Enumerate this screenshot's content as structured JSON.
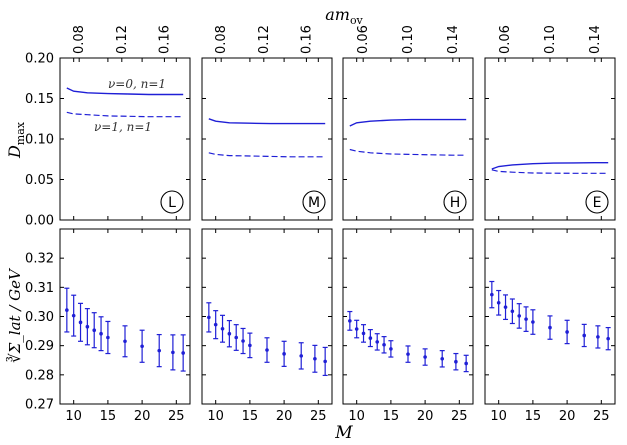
{
  "chart_data": {
    "type": "line",
    "x_label": "M",
    "top_x_label": "am_ov",
    "top_y_label": "D_max",
    "bottom_y_label": "∛Σ_lat / GeV",
    "x_range": [
      8,
      27
    ],
    "top_y_range": [
      0.0,
      0.2
    ],
    "bottom_y_range": [
      0.27,
      0.33
    ],
    "top_y_ticks": [
      "0.00",
      "0.05",
      "0.10",
      "0.15",
      "0.20"
    ],
    "bottom_y_ticks": [
      "0.27",
      "0.28",
      "0.29",
      "0.30",
      "0.31",
      "0.32"
    ],
    "x_ticks": [
      "10",
      "15",
      "20",
      "25"
    ],
    "annotations": {
      "nu0": "ν=0, n=1",
      "nu1": "ν=1, n=1"
    },
    "panels": [
      {
        "label": "L",
        "top_axis_ticks": [
          "0.08",
          "0.12",
          "0.16"
        ],
        "dmax_nu0": {
          "x": [
            9,
            10,
            12,
            15,
            18,
            21,
            24,
            26
          ],
          "y": [
            0.163,
            0.159,
            0.157,
            0.156,
            0.1555,
            0.155,
            0.155,
            0.155
          ]
        },
        "dmax_nu1": {
          "x": [
            9,
            10,
            12,
            15,
            18,
            21,
            24,
            26
          ],
          "y": [
            0.133,
            0.131,
            0.13,
            0.1285,
            0.128,
            0.1275,
            0.1275,
            0.1275
          ]
        },
        "sigma": {
          "M": [
            9,
            10,
            11,
            12,
            13,
            14,
            15,
            17.5,
            20,
            22.5,
            24.5,
            26
          ],
          "value": [
            0.3022,
            0.3003,
            0.298,
            0.2965,
            0.2953,
            0.2941,
            0.2928,
            0.2915,
            0.2898,
            0.2883,
            0.2877,
            0.2875
          ],
          "error": [
            0.0075,
            0.007,
            0.0065,
            0.0062,
            0.006,
            0.0058,
            0.0055,
            0.0053,
            0.0055,
            0.0055,
            0.006,
            0.0062
          ]
        }
      },
      {
        "label": "M",
        "top_axis_ticks": [
          "0.08",
          "0.12",
          "0.16"
        ],
        "dmax_nu0": {
          "x": [
            9,
            10,
            12,
            15,
            18,
            21,
            24,
            26
          ],
          "y": [
            0.125,
            0.122,
            0.12,
            0.1195,
            0.119,
            0.119,
            0.119,
            0.119
          ]
        },
        "dmax_nu1": {
          "x": [
            9,
            10,
            12,
            15,
            18,
            21,
            24,
            26
          ],
          "y": [
            0.083,
            0.081,
            0.0795,
            0.079,
            0.0785,
            0.078,
            0.078,
            0.078
          ]
        },
        "sigma": {
          "M": [
            9,
            10,
            11,
            12,
            13,
            14,
            15,
            17.5,
            20,
            22.5,
            24.5,
            26
          ],
          "value": [
            0.2997,
            0.2972,
            0.2958,
            0.2941,
            0.2928,
            0.2916,
            0.2901,
            0.2885,
            0.2872,
            0.2865,
            0.2855,
            0.2846
          ],
          "error": [
            0.005,
            0.0048,
            0.0046,
            0.0045,
            0.0044,
            0.0043,
            0.0042,
            0.0042,
            0.0043,
            0.0045,
            0.0046,
            0.0048
          ]
        }
      },
      {
        "label": "H",
        "top_axis_ticks": [
          "0.06",
          "0.10",
          "0.14"
        ],
        "dmax_nu0": {
          "x": [
            9,
            10,
            12,
            15,
            18,
            21,
            24,
            26
          ],
          "y": [
            0.116,
            0.12,
            0.122,
            0.1233,
            0.124,
            0.124,
            0.124,
            0.124
          ]
        },
        "dmax_nu1": {
          "x": [
            9,
            10,
            12,
            15,
            18,
            21,
            24,
            26
          ],
          "y": [
            0.087,
            0.085,
            0.083,
            0.0815,
            0.081,
            0.0805,
            0.08,
            0.08
          ]
        },
        "sigma": {
          "M": [
            9,
            10,
            11,
            12,
            13,
            14,
            15,
            17.5,
            20,
            22.5,
            24.5,
            26
          ],
          "value": [
            0.2985,
            0.2957,
            0.2942,
            0.2926,
            0.2913,
            0.2903,
            0.2889,
            0.2871,
            0.2861,
            0.2855,
            0.2845,
            0.2839
          ],
          "error": [
            0.0032,
            0.003,
            0.003,
            0.0029,
            0.0028,
            0.0028,
            0.0028,
            0.0028,
            0.0028,
            0.0028,
            0.0028,
            0.0028
          ]
        }
      },
      {
        "label": "E",
        "top_axis_ticks": [
          "0.06",
          "0.10",
          "0.14"
        ],
        "dmax_nu0": {
          "x": [
            9,
            10,
            12,
            15,
            18,
            21,
            24,
            26
          ],
          "y": [
            0.063,
            0.066,
            0.068,
            0.0695,
            0.0702,
            0.0705,
            0.0707,
            0.0707
          ]
        },
        "dmax_nu1": {
          "x": [
            9,
            10,
            12,
            15,
            18,
            21,
            24,
            26
          ],
          "y": [
            0.062,
            0.06,
            0.059,
            0.058,
            0.0578,
            0.0577,
            0.0577,
            0.0577
          ]
        },
        "sigma": {
          "M": [
            9,
            10,
            11,
            12,
            13,
            14,
            15,
            17.5,
            20,
            22.5,
            24.5,
            26
          ],
          "value": [
            0.3075,
            0.3047,
            0.3032,
            0.3018,
            0.3002,
            0.2991,
            0.2981,
            0.2962,
            0.2947,
            0.2935,
            0.293,
            0.2924
          ],
          "error": [
            0.0045,
            0.0042,
            0.0042,
            0.0042,
            0.0042,
            0.0042,
            0.0042,
            0.004,
            0.004,
            0.0038,
            0.0038,
            0.0038
          ]
        }
      }
    ]
  }
}
